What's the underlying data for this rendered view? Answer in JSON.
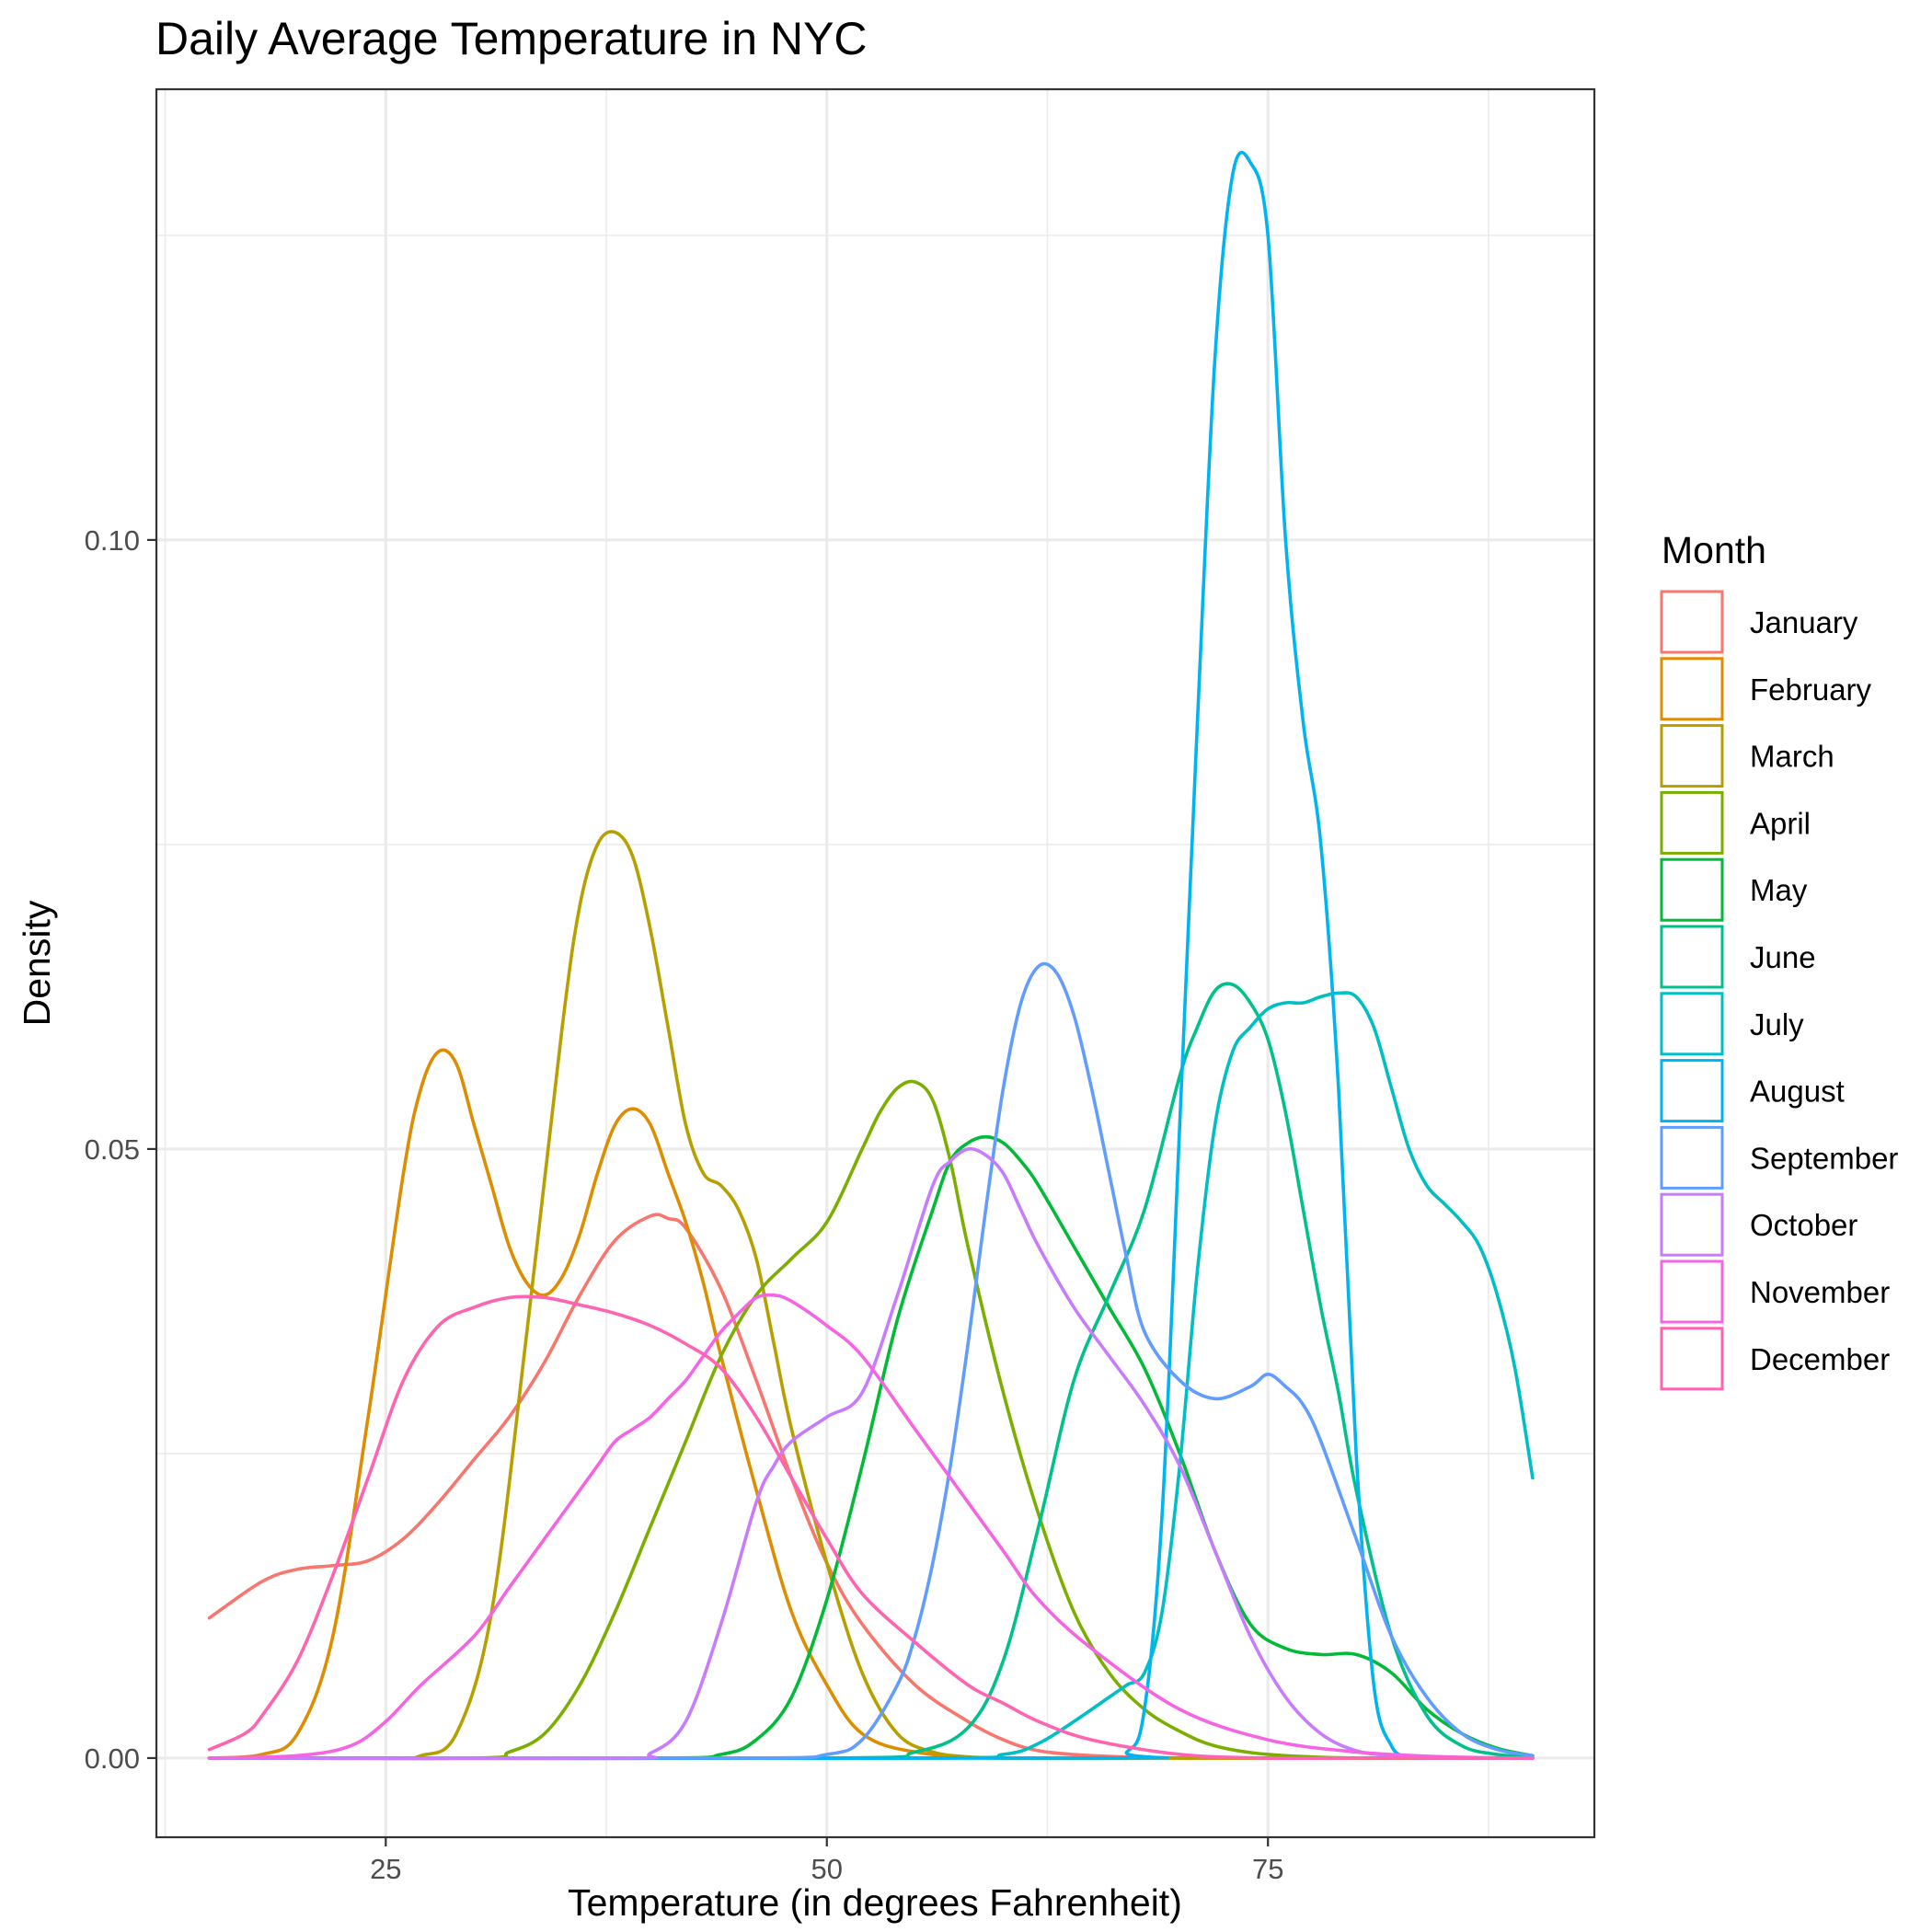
{
  "chart_data": {
    "type": "line",
    "title": "Daily Average Temperature in NYC",
    "xlabel": "Temperature (in degrees Fahrenheit)",
    "ylabel": "Density",
    "xlim": [
      12.0,
      93.5
    ],
    "ylim": [
      -0.0065,
      0.137
    ],
    "x_ticks": [
      25,
      50,
      75
    ],
    "x_tick_labels": [
      "25",
      "50",
      "75"
    ],
    "y_ticks": [
      0,
      0.05,
      0.1
    ],
    "y_tick_labels": [
      "0.00",
      "0.05",
      "0.10"
    ],
    "grid": true,
    "legend_title": "Month",
    "legend_position": "right",
    "series": [
      {
        "name": "January",
        "color": "#F8766D",
        "x": [
          15,
          18,
          20,
          22,
          24,
          26,
          28,
          30,
          32,
          34,
          36,
          38,
          40,
          41,
          42,
          44,
          46,
          48,
          50,
          52,
          55,
          58,
          60,
          62,
          65,
          70,
          75,
          80,
          85,
          90
        ],
        "y": [
          0.0115,
          0.0145,
          0.0155,
          0.0158,
          0.0162,
          0.018,
          0.021,
          0.0245,
          0.028,
          0.0325,
          0.038,
          0.0425,
          0.0445,
          0.0443,
          0.0435,
          0.0385,
          0.031,
          0.023,
          0.016,
          0.011,
          0.006,
          0.003,
          0.0015,
          0.0006,
          0.0002,
          0,
          0,
          0,
          0,
          0
        ]
      },
      {
        "name": "February",
        "color": "#DE8C00",
        "x": [
          15,
          18,
          20,
          22,
          24,
          26,
          27,
          28,
          29,
          30,
          31,
          32,
          33,
          34,
          35,
          36,
          37,
          38,
          39,
          40,
          41,
          42,
          43,
          44,
          46,
          48,
          50,
          52,
          55,
          60,
          70,
          80,
          90
        ],
        "y": [
          0,
          0.0003,
          0.002,
          0.01,
          0.028,
          0.048,
          0.055,
          0.058,
          0.057,
          0.052,
          0.047,
          0.042,
          0.039,
          0.038,
          0.0395,
          0.043,
          0.048,
          0.052,
          0.0533,
          0.052,
          0.048,
          0.044,
          0.039,
          0.033,
          0.022,
          0.012,
          0.006,
          0.002,
          0.0005,
          0,
          0,
          0,
          0
        ]
      },
      {
        "name": "March",
        "color": "#B79F00",
        "x": [
          15,
          25,
          27,
          29,
          31,
          33,
          35,
          36,
          37,
          38,
          39,
          40,
          41,
          42,
          43,
          44,
          45,
          46,
          47,
          48,
          50,
          52,
          54,
          56,
          58,
          60,
          70,
          80,
          90
        ],
        "y": [
          0,
          0,
          0.0002,
          0.002,
          0.012,
          0.035,
          0.06,
          0.07,
          0.075,
          0.076,
          0.074,
          0.068,
          0.06,
          0.052,
          0.048,
          0.047,
          0.045,
          0.041,
          0.034,
          0.027,
          0.016,
          0.007,
          0.002,
          0.0005,
          0.0001,
          0,
          0,
          0,
          0
        ]
      },
      {
        "name": "April",
        "color": "#7CAE00",
        "x": [
          15,
          30,
          32,
          34,
          36,
          38,
          40,
          42,
          44,
          46,
          48,
          50,
          52,
          53,
          54,
          55,
          56,
          57,
          58,
          60,
          62,
          64,
          66,
          68,
          70,
          72,
          75,
          80,
          90
        ],
        "y": [
          0,
          0,
          0.0005,
          0.002,
          0.006,
          0.012,
          0.019,
          0.026,
          0.033,
          0.038,
          0.041,
          0.044,
          0.05,
          0.053,
          0.055,
          0.0555,
          0.054,
          0.049,
          0.042,
          0.03,
          0.02,
          0.012,
          0.007,
          0.004,
          0.0022,
          0.001,
          0.0003,
          0,
          0
        ]
      },
      {
        "name": "May",
        "color": "#00BA38",
        "x": [
          15,
          40,
          44,
          46,
          48,
          50,
          52,
          54,
          56,
          57,
          58,
          59,
          60,
          61,
          62,
          64,
          66,
          68,
          70,
          72,
          74,
          76,
          78,
          80,
          82,
          84,
          86,
          88,
          90
        ],
        "y": [
          0,
          0,
          0.0003,
          0.0015,
          0.005,
          0.013,
          0.024,
          0.036,
          0.045,
          0.049,
          0.0505,
          0.051,
          0.0505,
          0.049,
          0.047,
          0.042,
          0.037,
          0.032,
          0.025,
          0.017,
          0.011,
          0.009,
          0.0085,
          0.0085,
          0.007,
          0.004,
          0.002,
          0.0008,
          0.0002
        ]
      },
      {
        "name": "June",
        "color": "#00C08B",
        "x": [
          15,
          50,
          55,
          58,
          60,
          62,
          64,
          66,
          68,
          70,
          71,
          72,
          73,
          74,
          75,
          76,
          77,
          78,
          79,
          80,
          82,
          84,
          86,
          88,
          90
        ],
        "y": [
          0,
          0,
          0.0005,
          0.0025,
          0.008,
          0.019,
          0.031,
          0.038,
          0.045,
          0.056,
          0.06,
          0.063,
          0.0635,
          0.062,
          0.059,
          0.053,
          0.045,
          0.037,
          0.03,
          0.022,
          0.01,
          0.0035,
          0.001,
          0.0003,
          0.0001
        ]
      },
      {
        "name": "July",
        "color": "#00BFC4",
        "x": [
          15,
          55,
          60,
          62,
          64,
          66,
          67,
          68,
          69,
          70,
          71,
          72,
          73,
          74,
          75,
          76,
          77,
          78,
          79,
          80,
          81,
          82,
          83,
          84,
          85,
          86,
          87,
          88,
          89,
          90
        ],
        "y": [
          0,
          0,
          0.0003,
          0.0012,
          0.003,
          0.005,
          0.006,
          0.007,
          0.012,
          0.024,
          0.04,
          0.052,
          0.058,
          0.06,
          0.0615,
          0.062,
          0.062,
          0.0625,
          0.0628,
          0.0625,
          0.06,
          0.055,
          0.05,
          0.047,
          0.0455,
          0.044,
          0.042,
          0.038,
          0.032,
          0.023
        ]
      },
      {
        "name": "August",
        "color": "#00B4F0",
        "x": [
          15,
          65,
          67,
          68,
          69,
          70,
          71,
          72,
          73,
          74,
          75,
          76,
          77,
          78,
          79,
          80,
          81,
          82,
          83,
          84,
          86,
          90
        ],
        "y": [
          0,
          0,
          0.0005,
          0.004,
          0.02,
          0.052,
          0.085,
          0.115,
          0.13,
          0.131,
          0.125,
          0.1,
          0.085,
          0.075,
          0.055,
          0.025,
          0.006,
          0.001,
          0.0001,
          0,
          0,
          0
        ]
      },
      {
        "name": "September",
        "color": "#619CFF",
        "x": [
          15,
          45,
          50,
          52,
          54,
          55,
          56,
          57,
          58,
          59,
          60,
          61,
          62,
          63,
          64,
          65,
          66,
          67,
          68,
          70,
          72,
          74,
          75,
          76,
          77,
          78,
          80,
          82,
          84,
          86,
          88,
          90
        ],
        "y": [
          0,
          0,
          0.0003,
          0.0015,
          0.006,
          0.01,
          0.016,
          0.024,
          0.034,
          0.045,
          0.055,
          0.062,
          0.065,
          0.0645,
          0.061,
          0.055,
          0.048,
          0.041,
          0.035,
          0.031,
          0.0295,
          0.0305,
          0.0315,
          0.0305,
          0.029,
          0.026,
          0.018,
          0.01,
          0.005,
          0.002,
          0.0007,
          0.0002
        ]
      },
      {
        "name": "October",
        "color": "#C77CFF",
        "x": [
          15,
          38,
          40,
          42,
          44,
          46,
          47,
          48,
          50,
          52,
          54,
          56,
          57,
          58,
          59,
          60,
          61,
          62,
          64,
          66,
          68,
          70,
          72,
          74,
          76,
          78,
          80,
          82,
          84,
          86,
          88,
          90
        ],
        "y": [
          0,
          0,
          0.0004,
          0.003,
          0.011,
          0.021,
          0.024,
          0.026,
          0.028,
          0.03,
          0.038,
          0.047,
          0.049,
          0.05,
          0.0495,
          0.048,
          0.045,
          0.042,
          0.037,
          0.033,
          0.029,
          0.024,
          0.017,
          0.01,
          0.005,
          0.002,
          0.0006,
          0.0002,
          0,
          0,
          0,
          0
        ]
      },
      {
        "name": "November",
        "color": "#F564E3",
        "x": [
          15,
          20,
          23,
          25,
          27,
          30,
          32,
          34,
          35,
          36,
          37,
          38,
          39,
          40,
          41,
          42,
          43,
          44,
          45,
          46,
          47,
          48,
          50,
          52,
          55,
          58,
          60,
          62,
          65,
          70,
          75,
          80,
          85,
          90
        ],
        "y": [
          0,
          0.0002,
          0.001,
          0.003,
          0.006,
          0.01,
          0.014,
          0.018,
          0.02,
          0.022,
          0.024,
          0.026,
          0.027,
          0.028,
          0.0295,
          0.031,
          0.033,
          0.035,
          0.0365,
          0.0378,
          0.038,
          0.0375,
          0.0355,
          0.033,
          0.027,
          0.021,
          0.017,
          0.013,
          0.009,
          0.004,
          0.0015,
          0.0005,
          0.0001,
          0
        ]
      },
      {
        "name": "December",
        "color": "#FF64B0",
        "x": [
          15,
          17,
          18,
          20,
          22,
          24,
          26,
          28,
          30,
          32,
          34,
          36,
          38,
          40,
          42,
          44,
          46,
          48,
          50,
          52,
          55,
          58,
          60,
          62,
          65,
          70,
          75,
          80,
          85,
          90
        ],
        "y": [
          0.0007,
          0.002,
          0.0035,
          0.008,
          0.015,
          0.023,
          0.031,
          0.0355,
          0.037,
          0.0378,
          0.0378,
          0.0372,
          0.0365,
          0.0355,
          0.034,
          0.032,
          0.028,
          0.023,
          0.018,
          0.0135,
          0.0095,
          0.006,
          0.0045,
          0.003,
          0.0015,
          0.0003,
          0,
          0,
          0,
          0
        ]
      }
    ]
  }
}
